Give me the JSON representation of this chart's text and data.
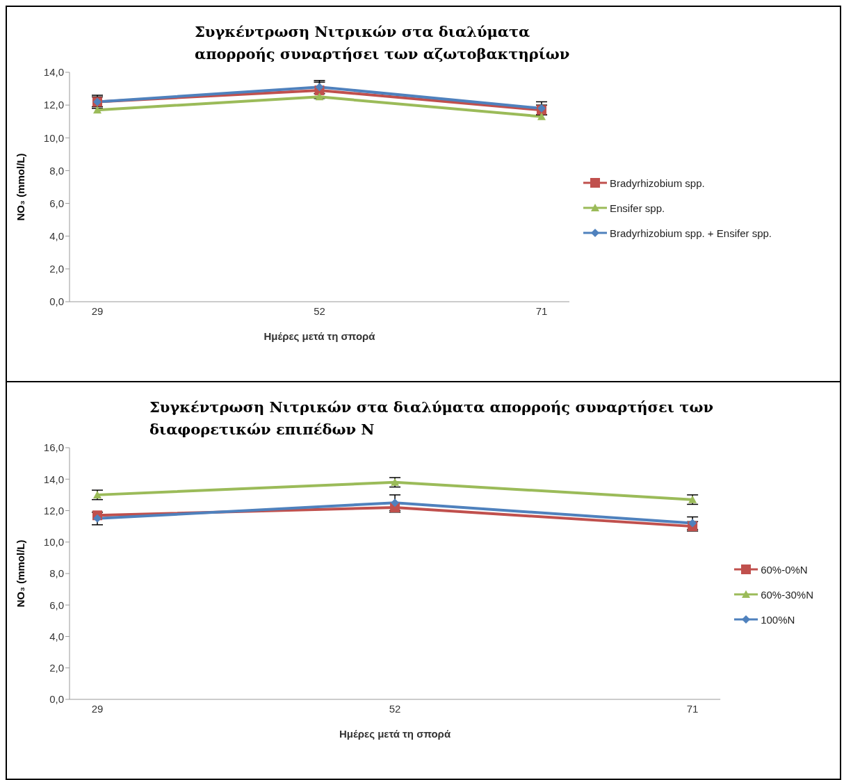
{
  "chart_data": [
    {
      "type": "line",
      "title": "Συγκέντρωση Νιτρικών στα διαλύματα απορροής συναρτήσει των αζωτοβακτηρίων",
      "xlabel": "Ημέρες μετά τη σπορά",
      "ylabel": "NO₃ (mmol/L)",
      "categories": [
        "29",
        "52",
        "71"
      ],
      "ylim": [
        0,
        14
      ],
      "yticks": [
        {
          "value": 0,
          "label": "0,0"
        },
        {
          "value": 2,
          "label": "2,0"
        },
        {
          "value": 4,
          "label": "4,0"
        },
        {
          "value": 6,
          "label": "6,0"
        },
        {
          "value": 8,
          "label": "8,0"
        },
        {
          "value": 10,
          "label": "10,0"
        },
        {
          "value": 12,
          "label": "12,0"
        },
        {
          "value": 14,
          "label": "14,0"
        }
      ],
      "grid": false,
      "legend": "right",
      "series": [
        {
          "name": "Bradyrhizobium spp.",
          "color": "#c0504d",
          "marker": "square",
          "values": [
            12.2,
            12.9,
            11.7
          ],
          "errors": [
            0.4,
            0.5,
            0.3
          ]
        },
        {
          "name": "Ensifer spp.",
          "color": "#9bbb59",
          "marker": "triangle",
          "values": [
            11.7,
            12.5,
            11.3
          ],
          "errors": [
            null,
            null,
            null
          ]
        },
        {
          "name": "Bradyrhizobium spp. + Ensifer spp.",
          "color": "#4f81bd",
          "marker": "diamond",
          "values": [
            12.2,
            13.1,
            11.8
          ],
          "errors": [
            0.3,
            0.4,
            0.4
          ]
        }
      ]
    },
    {
      "type": "line",
      "title": "Συγκέντρωση Νιτρικών στα διαλύματα απορροής συναρτήσει των διαφορετικών επιπέδων Ν",
      "xlabel": "Ημέρες μετά τη σπορά",
      "ylabel": "NO₃ (mmol/L)",
      "categories": [
        "29",
        "52",
        "71"
      ],
      "ylim": [
        0,
        16
      ],
      "yticks": [
        {
          "value": 0,
          "label": "0,0"
        },
        {
          "value": 2,
          "label": "2,0"
        },
        {
          "value": 4,
          "label": "4,0"
        },
        {
          "value": 6,
          "label": "6,0"
        },
        {
          "value": 8,
          "label": "8,0"
        },
        {
          "value": 10,
          "label": "10,0"
        },
        {
          "value": 12,
          "label": "12,0"
        },
        {
          "value": 14,
          "label": "14,0"
        },
        {
          "value": 16,
          "label": "16,0"
        }
      ],
      "grid": false,
      "legend": "right",
      "series": [
        {
          "name": "60%-0%N",
          "color": "#c0504d",
          "marker": "square",
          "values": [
            11.7,
            12.2,
            11.0
          ],
          "errors": [
            null,
            0.3,
            0.3
          ]
        },
        {
          "name": "60%-30%N",
          "color": "#9bbb59",
          "marker": "triangle",
          "values": [
            13.0,
            13.8,
            12.7
          ],
          "errors": [
            0.3,
            0.3,
            0.3
          ]
        },
        {
          "name": "100%N",
          "color": "#4f81bd",
          "marker": "diamond",
          "values": [
            11.5,
            12.5,
            11.2
          ],
          "errors": [
            0.4,
            0.5,
            0.4
          ]
        }
      ]
    }
  ]
}
